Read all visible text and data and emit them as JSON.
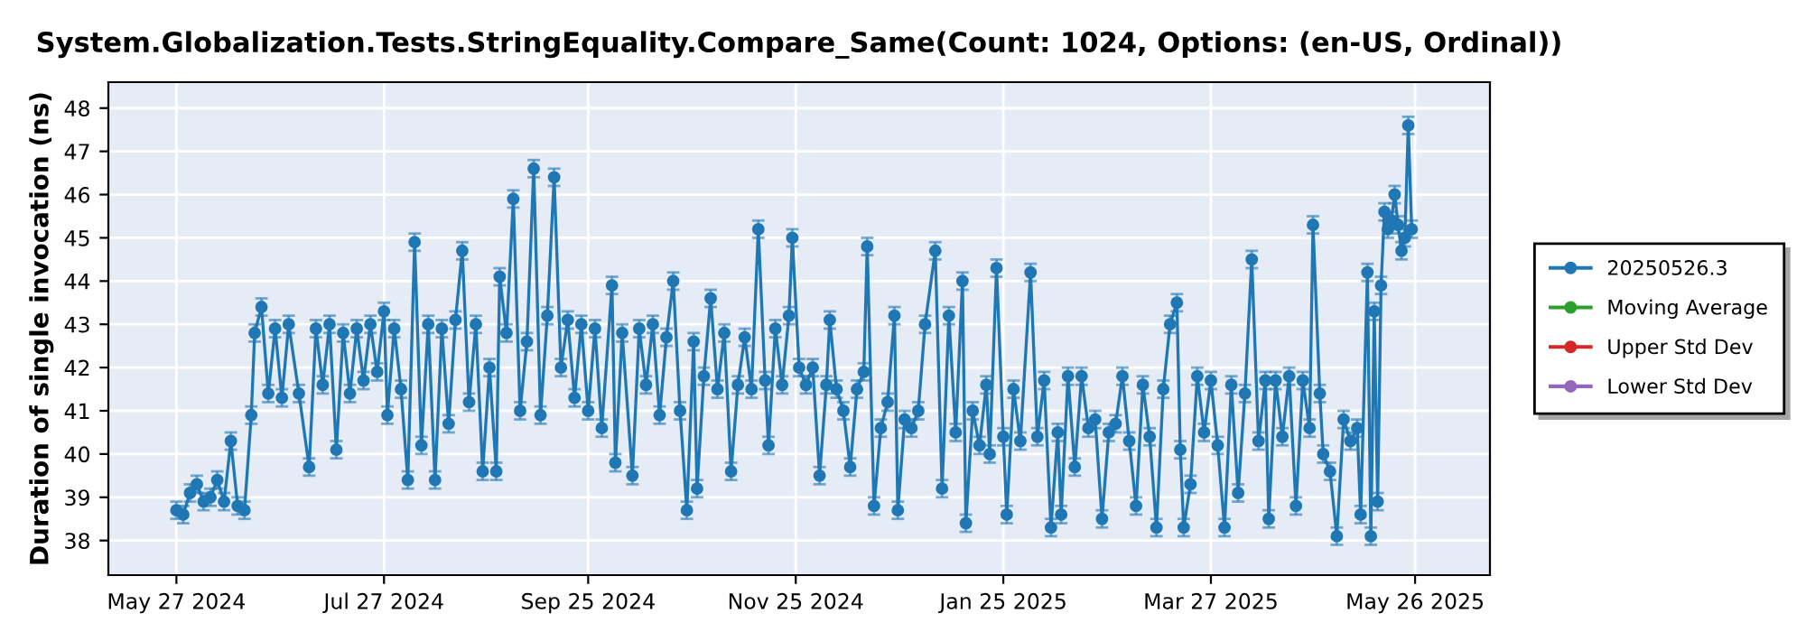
{
  "chart_data": {
    "type": "line",
    "title": "System.Globalization.Tests.StringEquality.Compare_Same(Count: 1024, Options: (en-US, Ordinal))",
    "ylabel": "Duration of single invocation (ns)",
    "xlim": [
      "2024-05-07",
      "2025-06-17"
    ],
    "xticks": [
      {
        "value": "2024-05-27",
        "label": "May 27 2024"
      },
      {
        "value": "2024-07-27",
        "label": "Jul 27 2024"
      },
      {
        "value": "2024-09-25",
        "label": "Sep 25 2024"
      },
      {
        "value": "2024-11-25",
        "label": "Nov 25 2024"
      },
      {
        "value": "2025-01-25",
        "label": "Jan 25 2025"
      },
      {
        "value": "2025-03-27",
        "label": "Mar 27 2025"
      },
      {
        "value": "2025-05-26",
        "label": "May 26 2025"
      }
    ],
    "ylim": [
      37.2,
      48.6
    ],
    "yticks": [
      38,
      39,
      40,
      41,
      42,
      43,
      44,
      45,
      46,
      47,
      48
    ],
    "grid": true,
    "legend": "right",
    "marker": "circle",
    "line_style": "solid",
    "series": [
      {
        "name": "20250526.3",
        "color": "#1f77b4",
        "x": [
          "2024-05-27",
          "2024-05-29",
          "2024-05-31",
          "2024-06-02",
          "2024-06-04",
          "2024-06-06",
          "2024-06-08",
          "2024-06-10",
          "2024-06-12",
          "2024-06-14",
          "2024-06-16",
          "2024-06-18",
          "2024-06-19",
          "2024-06-21",
          "2024-06-23",
          "2024-06-25",
          "2024-06-27",
          "2024-06-29",
          "2024-07-02",
          "2024-07-05",
          "2024-07-07",
          "2024-07-09",
          "2024-07-11",
          "2024-07-13",
          "2024-07-15",
          "2024-07-17",
          "2024-07-19",
          "2024-07-21",
          "2024-07-23",
          "2024-07-25",
          "2024-07-27",
          "2024-07-28",
          "2024-07-30",
          "2024-08-01",
          "2024-08-03",
          "2024-08-05",
          "2024-08-07",
          "2024-08-09",
          "2024-08-11",
          "2024-08-13",
          "2024-08-15",
          "2024-08-17",
          "2024-08-19",
          "2024-08-21",
          "2024-08-23",
          "2024-08-25",
          "2024-08-27",
          "2024-08-29",
          "2024-08-30",
          "2024-09-01",
          "2024-09-03",
          "2024-09-05",
          "2024-09-07",
          "2024-09-09",
          "2024-09-11",
          "2024-09-13",
          "2024-09-15",
          "2024-09-17",
          "2024-09-19",
          "2024-09-21",
          "2024-09-23",
          "2024-09-25",
          "2024-09-27",
          "2024-09-29",
          "2024-10-02",
          "2024-10-03",
          "2024-10-05",
          "2024-10-08",
          "2024-10-10",
          "2024-10-12",
          "2024-10-14",
          "2024-10-16",
          "2024-10-18",
          "2024-10-20",
          "2024-10-22",
          "2024-10-24",
          "2024-10-26",
          "2024-10-27",
          "2024-10-29",
          "2024-10-31",
          "2024-11-02",
          "2024-11-04",
          "2024-11-06",
          "2024-11-08",
          "2024-11-10",
          "2024-11-12",
          "2024-11-14",
          "2024-11-16",
          "2024-11-17",
          "2024-11-19",
          "2024-11-21",
          "2024-11-23",
          "2024-11-24",
          "2024-11-26",
          "2024-11-28",
          "2024-11-30",
          "2024-12-02",
          "2024-12-04",
          "2024-12-05",
          "2024-12-07",
          "2024-12-09",
          "2024-12-11",
          "2024-12-13",
          "2024-12-15",
          "2024-12-16",
          "2024-12-18",
          "2024-12-20",
          "2024-12-22",
          "2024-12-24",
          "2024-12-25",
          "2024-12-27",
          "2024-12-29",
          "2024-12-31",
          "2025-01-02",
          "2025-01-05",
          "2025-01-07",
          "2025-01-09",
          "2025-01-11",
          "2025-01-13",
          "2025-01-14",
          "2025-01-16",
          "2025-01-18",
          "2025-01-20",
          "2025-01-21",
          "2025-01-23",
          "2025-01-25",
          "2025-01-26",
          "2025-01-28",
          "2025-01-30",
          "2025-02-02",
          "2025-02-04",
          "2025-02-06",
          "2025-02-08",
          "2025-02-10",
          "2025-02-11",
          "2025-02-13",
          "2025-02-15",
          "2025-02-17",
          "2025-02-19",
          "2025-02-21",
          "2025-02-23",
          "2025-02-25",
          "2025-02-27",
          "2025-03-01",
          "2025-03-03",
          "2025-03-05",
          "2025-03-07",
          "2025-03-09",
          "2025-03-11",
          "2025-03-13",
          "2025-03-15",
          "2025-03-17",
          "2025-03-18",
          "2025-03-19",
          "2025-03-21",
          "2025-03-23",
          "2025-03-25",
          "2025-03-27",
          "2025-03-29",
          "2025-03-31",
          "2025-04-02",
          "2025-04-04",
          "2025-04-06",
          "2025-04-08",
          "2025-04-10",
          "2025-04-12",
          "2025-04-13",
          "2025-04-15",
          "2025-04-17",
          "2025-04-19",
          "2025-04-21",
          "2025-04-23",
          "2025-04-25",
          "2025-04-26",
          "2025-04-28",
          "2025-04-29",
          "2025-05-01",
          "2025-05-03",
          "2025-05-05",
          "2025-05-07",
          "2025-05-09",
          "2025-05-10",
          "2025-05-12",
          "2025-05-13",
          "2025-05-14",
          "2025-05-15",
          "2025-05-16",
          "2025-05-17",
          "2025-05-18",
          "2025-05-19",
          "2025-05-20",
          "2025-05-21",
          "2025-05-22",
          "2025-05-23",
          "2025-05-24",
          "2025-05-25"
        ],
        "values": [
          38.7,
          38.6,
          39.1,
          39.3,
          38.9,
          39.0,
          39.4,
          38.9,
          40.3,
          38.8,
          38.7,
          40.9,
          42.8,
          43.4,
          41.4,
          42.9,
          41.3,
          43.0,
          41.4,
          39.7,
          42.9,
          41.6,
          43.0,
          40.1,
          42.8,
          41.4,
          42.9,
          41.7,
          43.0,
          41.9,
          43.3,
          40.9,
          42.9,
          41.5,
          39.4,
          44.9,
          40.2,
          43.0,
          39.4,
          42.9,
          40.7,
          43.1,
          44.7,
          41.2,
          43.0,
          39.6,
          42.0,
          39.6,
          44.1,
          42.8,
          45.9,
          41.0,
          42.6,
          46.6,
          40.9,
          43.2,
          46.4,
          42.0,
          43.1,
          41.3,
          43.0,
          41.0,
          42.9,
          40.6,
          43.9,
          39.8,
          42.8,
          39.5,
          42.9,
          41.6,
          43.0,
          40.9,
          42.7,
          44.0,
          41.0,
          38.7,
          42.6,
          39.2,
          41.8,
          43.6,
          41.5,
          42.8,
          39.6,
          41.6,
          42.7,
          41.5,
          45.2,
          41.7,
          40.2,
          42.9,
          41.6,
          43.2,
          45.0,
          42.0,
          41.6,
          42.0,
          39.5,
          41.6,
          43.1,
          41.5,
          41.0,
          39.7,
          41.5,
          41.9,
          44.8,
          38.8,
          40.6,
          41.2,
          43.2,
          38.7,
          40.8,
          40.6,
          41.0,
          43.0,
          44.7,
          39.2,
          43.2,
          40.5,
          44.0,
          38.4,
          41.0,
          40.2,
          41.6,
          40.0,
          44.3,
          40.4,
          38.6,
          41.5,
          40.3,
          44.2,
          40.4,
          41.7,
          38.3,
          40.5,
          38.6,
          41.8,
          39.7,
          41.8,
          40.6,
          40.8,
          38.5,
          40.5,
          40.7,
          41.8,
          40.3,
          38.8,
          41.6,
          40.4,
          38.3,
          41.5,
          43.0,
          43.5,
          40.1,
          38.3,
          39.3,
          41.8,
          40.5,
          41.7,
          40.2,
          38.3,
          41.6,
          39.1,
          41.4,
          44.5,
          40.3,
          41.7,
          38.5,
          41.7,
          40.4,
          41.8,
          38.8,
          41.7,
          40.6,
          45.3,
          41.4,
          40.0,
          39.6,
          38.1,
          40.8,
          40.3,
          40.6,
          38.6,
          44.2,
          38.1,
          43.3,
          38.9,
          43.9,
          45.6,
          45.2,
          45.4,
          46.0,
          45.3,
          44.7,
          45.0,
          47.6,
          45.2
        ],
        "errors": [
          0.2,
          0.2,
          0.2,
          0.2,
          0.2,
          0.2,
          0.2,
          0.2,
          0.2,
          0.2,
          0.2,
          0.2,
          0.2,
          0.2,
          0.2,
          0.2,
          0.2,
          0.2,
          0.2,
          0.2,
          0.2,
          0.2,
          0.2,
          0.2,
          0.2,
          0.2,
          0.2,
          0.2,
          0.2,
          0.2,
          0.2,
          0.2,
          0.2,
          0.2,
          0.2,
          0.2,
          0.2,
          0.2,
          0.2,
          0.2,
          0.2,
          0.2,
          0.2,
          0.2,
          0.2,
          0.2,
          0.2,
          0.2,
          0.2,
          0.2,
          0.2,
          0.2,
          0.2,
          0.2,
          0.2,
          0.2,
          0.2,
          0.2,
          0.2,
          0.2,
          0.2,
          0.2,
          0.2,
          0.2,
          0.2,
          0.2,
          0.2,
          0.2,
          0.2,
          0.2,
          0.2,
          0.2,
          0.2,
          0.2,
          0.2,
          0.2,
          0.2,
          0.2,
          0.2,
          0.2,
          0.2,
          0.2,
          0.2,
          0.2,
          0.2,
          0.2,
          0.2,
          0.2,
          0.2,
          0.2,
          0.2,
          0.2,
          0.2,
          0.2,
          0.2,
          0.2,
          0.2,
          0.2,
          0.2,
          0.2,
          0.2,
          0.2,
          0.2,
          0.2,
          0.2,
          0.2,
          0.2,
          0.2,
          0.2,
          0.2,
          0.2,
          0.2,
          0.2,
          0.2,
          0.2,
          0.2,
          0.2,
          0.2,
          0.2,
          0.2,
          0.2,
          0.2,
          0.2,
          0.2,
          0.2,
          0.2,
          0.2,
          0.2,
          0.2,
          0.2,
          0.2,
          0.2,
          0.2,
          0.2,
          0.2,
          0.2,
          0.2,
          0.2,
          0.2,
          0.2,
          0.2,
          0.2,
          0.2,
          0.2,
          0.2,
          0.2,
          0.2,
          0.2,
          0.2,
          0.2,
          0.2,
          0.2,
          0.2,
          0.2,
          0.2,
          0.2,
          0.2,
          0.2,
          0.2,
          0.2,
          0.2,
          0.2,
          0.2,
          0.2,
          0.2,
          0.2,
          0.2,
          0.2,
          0.2,
          0.2,
          0.2,
          0.2,
          0.2,
          0.2,
          0.2,
          0.2,
          0.2,
          0.2,
          0.2,
          0.2,
          0.2,
          0.2,
          0.2,
          0.2,
          0.2,
          0.2,
          0.2,
          0.2,
          0.2,
          0.2,
          0.2,
          0.2,
          0.2,
          0.2,
          0.2,
          0.2
        ]
      },
      {
        "name": "Moving Average",
        "color": "#2ca02c"
      },
      {
        "name": "Upper Std Dev",
        "color": "#d62728"
      },
      {
        "name": "Lower Std Dev",
        "color": "#9467bd"
      }
    ]
  }
}
